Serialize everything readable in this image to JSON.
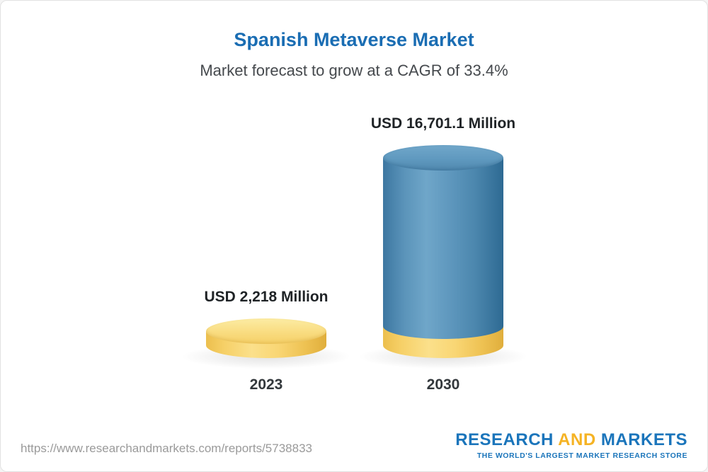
{
  "page": {
    "footer_url": "https://www.researchandmarkets.com/reports/5738833",
    "logo": {
      "part1": "RESEARCH",
      "part2": "AND",
      "part3": "MARKETS",
      "tagline": "THE WORLD'S LARGEST MARKET RESEARCH STORE"
    }
  },
  "chart_data": {
    "type": "bar",
    "title": "Spanish Metaverse Market",
    "subtitle": "Market forecast to grow at a CAGR of 33.4%",
    "categories": [
      "2023",
      "2030"
    ],
    "values": [
      2218,
      16701.1
    ],
    "value_labels": [
      "USD 2,218 Million",
      "USD 16,701.1 Million"
    ],
    "unit": "USD Million",
    "cagr_percent": 33.4,
    "ylim": [
      0,
      16701.1
    ],
    "grid": false,
    "legend": "none",
    "colors": {
      "title_blue": "#1a6db3",
      "bar_2023_gold": "#f7d068",
      "bar_2030_blue": "#5f98be",
      "bar_2030_base_gold": "#f7d068",
      "logo_blue": "#1b75bb",
      "logo_gold": "#f5b324",
      "subtitle_gray": "#45494d",
      "url_gray": "#9a9a9a"
    }
  }
}
